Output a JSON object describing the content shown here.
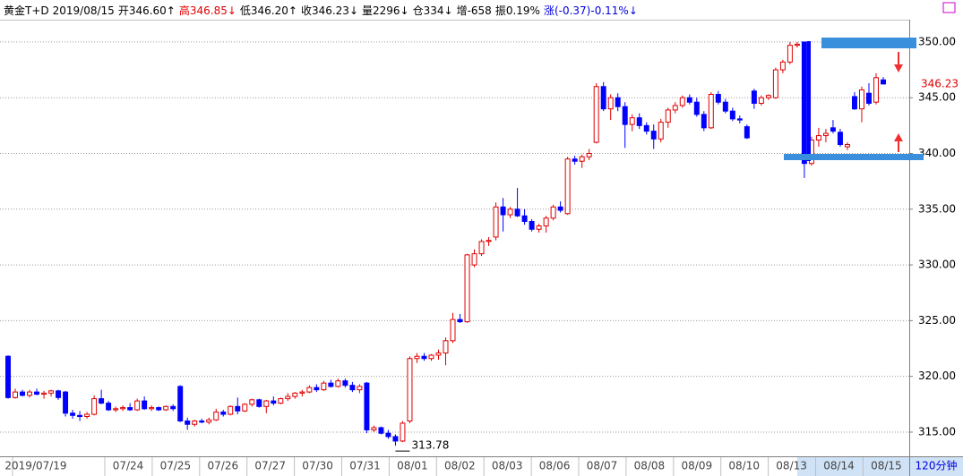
{
  "chart_data": {
    "type": "candlestick",
    "header": [
      {
        "text": "黄金T+D",
        "color": "#000000"
      },
      {
        "text": "2019/08/15",
        "color": "#000000"
      },
      {
        "text": "开346.60↑",
        "color": "#000000"
      },
      {
        "text": "高346.85↓",
        "color": "#e00000"
      },
      {
        "text": "低346.20↑",
        "color": "#000000"
      },
      {
        "text": "收346.23↓",
        "color": "#000000"
      },
      {
        "text": "量2296↓",
        "color": "#000000"
      },
      {
        "text": "仓334↓",
        "color": "#000000"
      },
      {
        "text": "增-658",
        "color": "#000000"
      },
      {
        "text": "振0.19%",
        "color": "#000000"
      },
      {
        "text": "涨(-0.37)-0.11%↓",
        "color": "#0000e0"
      }
    ],
    "period": "120分钟",
    "up_color": "#e00000",
    "down_color": "#0000ff",
    "ylim": [
      312.83,
      352.0
    ],
    "yticks": [
      {
        "value": 315,
        "label": "315.00"
      },
      {
        "value": 320,
        "label": "320.00"
      },
      {
        "value": 325,
        "label": "325.00"
      },
      {
        "value": 330,
        "label": "330.00"
      },
      {
        "value": 335,
        "label": "335.00"
      },
      {
        "value": 340,
        "label": "340.00"
      },
      {
        "value": 345,
        "label": "345.00"
      },
      {
        "value": 350,
        "label": "350.00"
      }
    ],
    "grid": true,
    "x_labels": [
      "2019/07/19",
      "07/24",
      "07/25",
      "07/26",
      "07/27",
      "07/30",
      "07/31",
      "08/01",
      "08/02",
      "08/03",
      "08/06",
      "08/07",
      "08/08",
      "08/09",
      "08/10",
      "08/13",
      "08/14",
      "08/15"
    ],
    "low_label": {
      "value": 313.78,
      "label": "313.78",
      "index": 54
    },
    "last_label": {
      "value": 346.23,
      "label": "346.23"
    },
    "ohlc": [
      [
        321.8,
        321.9,
        318.0,
        318.1
      ],
      [
        318.1,
        318.9,
        318.0,
        318.6
      ],
      [
        318.6,
        318.8,
        318.2,
        318.3
      ],
      [
        318.3,
        318.8,
        318.1,
        318.6
      ],
      [
        318.6,
        318.9,
        318.3,
        318.4
      ],
      [
        318.4,
        318.7,
        318.0,
        318.5
      ],
      [
        318.5,
        318.8,
        318.2,
        318.7
      ],
      [
        318.7,
        318.8,
        317.9,
        318.1
      ],
      [
        318.6,
        318.7,
        316.4,
        316.7
      ],
      [
        316.7,
        317.0,
        316.2,
        316.5
      ],
      [
        316.5,
        316.9,
        316.0,
        316.4
      ],
      [
        316.4,
        316.8,
        316.2,
        316.6
      ],
      [
        316.6,
        318.3,
        316.5,
        318.0
      ],
      [
        318.0,
        318.8,
        317.5,
        317.6
      ],
      [
        317.6,
        317.8,
        316.9,
        317.0
      ],
      [
        317.0,
        317.3,
        316.8,
        317.1
      ],
      [
        317.1,
        317.4,
        316.9,
        317.2
      ],
      [
        317.2,
        317.6,
        316.9,
        317.0
      ],
      [
        317.0,
        318.0,
        316.9,
        317.8
      ],
      [
        317.8,
        318.2,
        317.0,
        317.1
      ],
      [
        317.1,
        317.4,
        316.9,
        317.2
      ],
      [
        317.2,
        317.3,
        316.9,
        317.0
      ],
      [
        317.0,
        317.4,
        316.9,
        317.3
      ],
      [
        317.3,
        317.5,
        316.9,
        317.1
      ],
      [
        319.1,
        319.2,
        315.9,
        316.0
      ],
      [
        316.0,
        316.3,
        315.2,
        315.7
      ],
      [
        315.7,
        316.1,
        315.5,
        316.0
      ],
      [
        316.0,
        316.2,
        315.8,
        315.9
      ],
      [
        315.9,
        316.3,
        315.7,
        316.1
      ],
      [
        316.1,
        317.1,
        316.0,
        316.8
      ],
      [
        316.8,
        317.0,
        316.4,
        316.6
      ],
      [
        316.6,
        317.4,
        316.5,
        317.3
      ],
      [
        317.3,
        318.1,
        316.6,
        316.9
      ],
      [
        316.9,
        317.6,
        316.8,
        317.5
      ],
      [
        317.5,
        318.0,
        317.3,
        317.9
      ],
      [
        317.9,
        318.0,
        317.2,
        317.3
      ],
      [
        317.3,
        317.9,
        316.7,
        317.8
      ],
      [
        317.8,
        318.2,
        317.4,
        317.6
      ],
      [
        317.6,
        318.1,
        317.5,
        318.0
      ],
      [
        318.0,
        318.5,
        317.8,
        318.2
      ],
      [
        318.2,
        318.6,
        318.0,
        318.5
      ],
      [
        318.5,
        318.8,
        318.2,
        318.6
      ],
      [
        318.6,
        319.2,
        318.5,
        319.0
      ],
      [
        319.0,
        319.3,
        318.6,
        318.8
      ],
      [
        318.8,
        319.6,
        318.7,
        319.4
      ],
      [
        319.4,
        319.7,
        319.0,
        319.1
      ],
      [
        319.1,
        319.8,
        319.0,
        319.6
      ],
      [
        319.6,
        319.8,
        319.0,
        319.2
      ],
      [
        319.2,
        319.5,
        318.6,
        318.8
      ],
      [
        318.8,
        319.3,
        318.5,
        319.1
      ],
      [
        319.4,
        319.5,
        314.9,
        315.2
      ],
      [
        315.2,
        315.6,
        315.0,
        315.4
      ],
      [
        315.4,
        315.5,
        314.8,
        314.9
      ],
      [
        314.9,
        315.2,
        314.4,
        314.6
      ],
      [
        314.6,
        314.8,
        313.78,
        314.2
      ],
      [
        314.2,
        316.0,
        314.1,
        315.8
      ],
      [
        316.0,
        321.8,
        315.8,
        321.6
      ],
      [
        321.6,
        322.1,
        321.2,
        321.8
      ],
      [
        321.8,
        322.1,
        321.4,
        321.6
      ],
      [
        321.6,
        322.0,
        321.4,
        321.9
      ],
      [
        321.9,
        322.4,
        321.5,
        322.1
      ],
      [
        322.1,
        323.5,
        321.0,
        323.2
      ],
      [
        323.2,
        325.7,
        323.0,
        325.1
      ],
      [
        325.1,
        325.6,
        324.8,
        324.9
      ],
      [
        324.9,
        331.0,
        324.8,
        330.9
      ],
      [
        330.0,
        331.4,
        329.8,
        331.0
      ],
      [
        331.0,
        332.3,
        330.8,
        332.1
      ],
      [
        332.1,
        332.5,
        331.7,
        332.2
      ],
      [
        332.5,
        335.6,
        332.2,
        335.2
      ],
      [
        335.2,
        336.0,
        333.0,
        334.5
      ],
      [
        334.5,
        335.2,
        334.2,
        335.0
      ],
      [
        335.0,
        336.9,
        334.3,
        334.4
      ],
      [
        334.4,
        335.0,
        333.6,
        333.9
      ],
      [
        333.9,
        334.1,
        333.0,
        333.2
      ],
      [
        333.2,
        333.7,
        332.9,
        333.5
      ],
      [
        333.5,
        334.4,
        332.9,
        334.2
      ],
      [
        334.2,
        335.4,
        334.0,
        335.2
      ],
      [
        335.2,
        335.7,
        334.7,
        334.9
      ],
      [
        334.6,
        339.7,
        334.5,
        339.5
      ],
      [
        339.5,
        339.8,
        339.0,
        339.3
      ],
      [
        339.3,
        339.9,
        338.7,
        339.7
      ],
      [
        339.7,
        340.4,
        339.4,
        340.0
      ],
      [
        341.0,
        346.3,
        340.9,
        346.0
      ],
      [
        346.0,
        346.4,
        343.8,
        344.0
      ],
      [
        344.0,
        345.3,
        343.0,
        345.0
      ],
      [
        345.0,
        345.4,
        343.8,
        344.2
      ],
      [
        344.2,
        344.6,
        340.5,
        342.6
      ],
      [
        342.6,
        343.5,
        342.0,
        343.2
      ],
      [
        343.2,
        343.6,
        342.2,
        342.5
      ],
      [
        342.5,
        342.8,
        341.7,
        342.0
      ],
      [
        342.0,
        342.6,
        340.4,
        341.3
      ],
      [
        341.3,
        343.1,
        341.0,
        342.8
      ],
      [
        342.8,
        344.1,
        342.3,
        343.9
      ],
      [
        343.9,
        344.6,
        343.6,
        344.3
      ],
      [
        344.3,
        345.2,
        344.1,
        345.0
      ],
      [
        345.0,
        345.3,
        344.4,
        344.6
      ],
      [
        344.6,
        345.0,
        343.3,
        343.5
      ],
      [
        343.5,
        343.8,
        342.0,
        342.3
      ],
      [
        342.3,
        345.5,
        342.2,
        345.3
      ],
      [
        345.3,
        345.6,
        344.4,
        344.6
      ],
      [
        344.6,
        344.9,
        343.6,
        343.8
      ],
      [
        343.8,
        344.1,
        342.9,
        343.1
      ],
      [
        343.1,
        343.4,
        342.7,
        343.0
      ],
      [
        342.4,
        342.6,
        341.3,
        341.4
      ],
      [
        345.6,
        345.8,
        344.0,
        344.5
      ],
      [
        344.5,
        345.2,
        344.3,
        345.0
      ],
      [
        345.0,
        345.3,
        344.8,
        345.2
      ],
      [
        345.0,
        347.7,
        344.9,
        347.5
      ],
      [
        347.5,
        348.4,
        347.2,
        348.2
      ],
      [
        348.2,
        350.0,
        348.0,
        349.7
      ],
      [
        349.7,
        350.0,
        349.5,
        349.8
      ],
      [
        350.0,
        350.0,
        337.8,
        339.1
      ],
      [
        339.1,
        341.5,
        338.9,
        341.2
      ],
      [
        341.2,
        342.3,
        340.6,
        341.6
      ],
      [
        341.6,
        342.2,
        341.0,
        341.8
      ],
      [
        342.3,
        343.0,
        341.8,
        342.0
      ],
      [
        341.9,
        342.2,
        340.6,
        340.8
      ],
      [
        340.6,
        341.0,
        340.3,
        340.8
      ],
      [
        345.1,
        345.5,
        343.9,
        344.0
      ],
      [
        344.0,
        346.0,
        342.8,
        345.7
      ],
      [
        345.4,
        346.3,
        344.3,
        344.5
      ],
      [
        344.6,
        347.2,
        344.4,
        346.8
      ],
      [
        346.6,
        346.85,
        346.2,
        346.23
      ]
    ]
  }
}
